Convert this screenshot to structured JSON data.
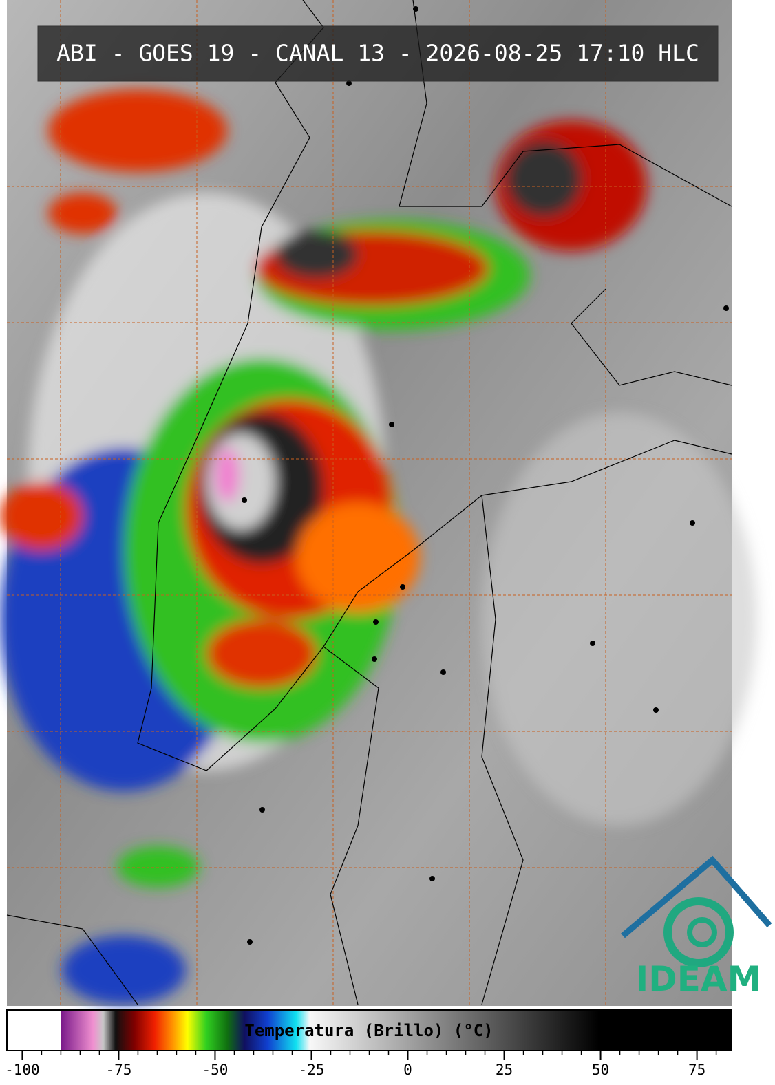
{
  "title": "ABI - GOES 19 - CANAL 13 - 2026-08-25 17:10 HLC",
  "logo": "IDEAM",
  "colorbar": {
    "label": "Temperatura (Brillo) (°C)",
    "xlim": [
      -104,
      84
    ],
    "ticks": [
      -100,
      -75,
      -50,
      -25,
      0,
      25,
      50,
      75
    ],
    "minor_ticks": [
      -100,
      -95,
      -90,
      -85,
      -80,
      -75,
      -70,
      -65,
      -60,
      -55,
      -50,
      -45,
      -40,
      -35,
      -30,
      -25,
      -20,
      -15,
      -10,
      -5,
      0,
      5,
      10,
      15,
      20,
      25,
      30,
      35,
      40,
      45,
      50,
      55,
      60,
      65,
      70,
      75,
      80
    ]
  }
}
